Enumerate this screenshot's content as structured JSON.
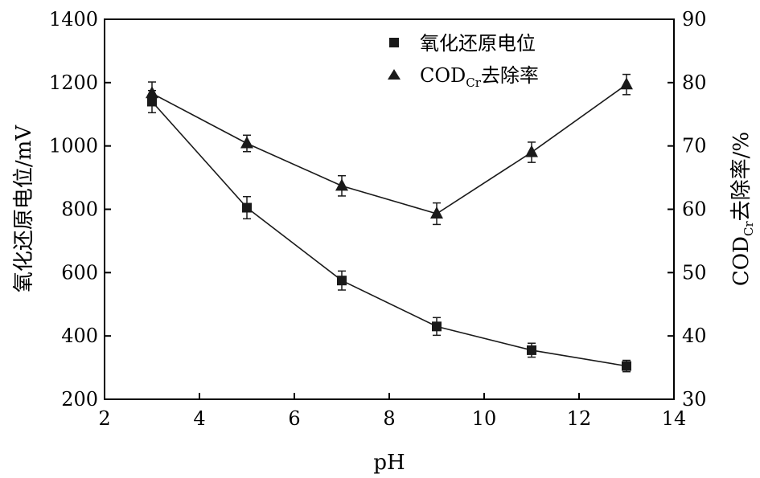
{
  "chart_data": {
    "type": "line",
    "xlabel": "pH",
    "ylabel_left": "氧化还原电位/mV",
    "ylabel_right": {
      "main": "COD",
      "sub": "Cr",
      "rest": "去除率/%"
    },
    "xlim": [
      2,
      14
    ],
    "ylim_left": [
      200,
      1400
    ],
    "ylim_right": [
      30,
      90
    ],
    "xticks": [
      2,
      4,
      6,
      8,
      10,
      12,
      14
    ],
    "yticks_left": [
      200,
      400,
      600,
      800,
      1000,
      1200,
      1400
    ],
    "yticks_right": [
      30,
      40,
      50,
      60,
      70,
      80,
      90
    ],
    "grid": false,
    "legend_position": "top-center",
    "series": [
      {
        "name": "氧化还原电位",
        "axis": "left",
        "marker": "square",
        "x": [
          3,
          5,
          7,
          9,
          11,
          13
        ],
        "y": [
          1140,
          805,
          575,
          430,
          355,
          305
        ],
        "err": [
          35,
          35,
          30,
          28,
          22,
          18
        ]
      },
      {
        "name": {
          "main": "COD",
          "sub": "Cr",
          "rest": "去除率"
        },
        "axis": "right",
        "marker": "triangle",
        "x": [
          3,
          5,
          7,
          9,
          11,
          13
        ],
        "y": [
          78.3,
          70.4,
          63.7,
          59.3,
          69.0,
          79.7
        ],
        "err": [
          1.8,
          1.3,
          1.6,
          1.7,
          1.6,
          1.6
        ]
      }
    ]
  }
}
